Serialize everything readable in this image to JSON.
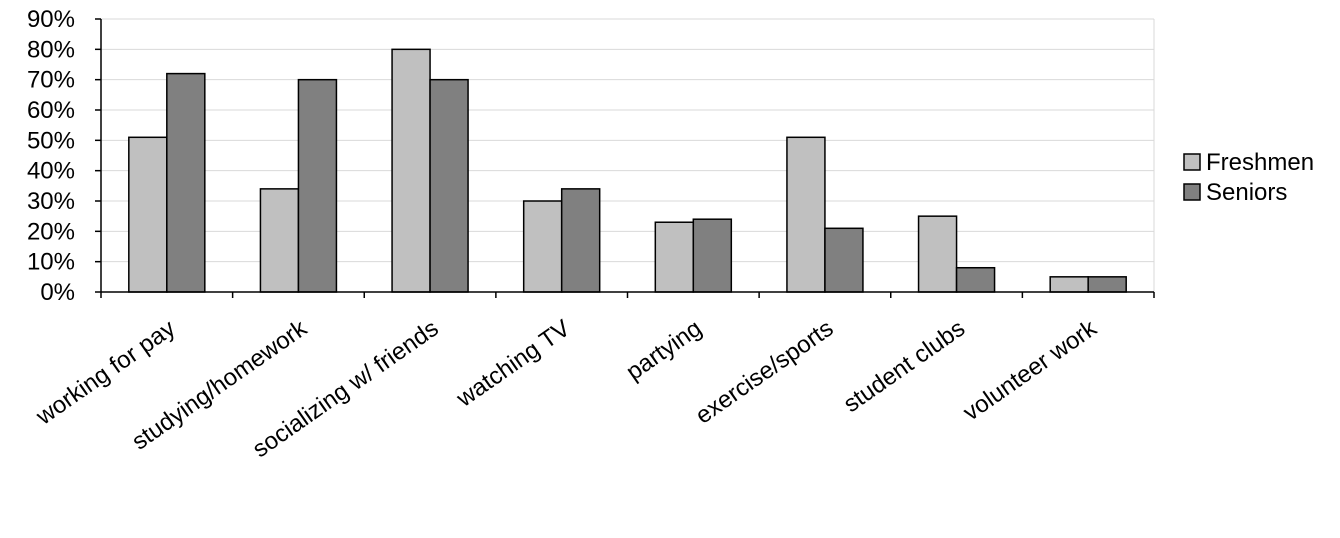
{
  "chart_data": {
    "type": "bar",
    "title": "",
    "xlabel": "",
    "ylabel": "",
    "ylim": [
      0,
      90
    ],
    "y_ticks": [
      "0%",
      "10%",
      "20%",
      "30%",
      "40%",
      "50%",
      "60%",
      "70%",
      "80%",
      "90%"
    ],
    "grid": true,
    "legend_position": "right",
    "categories": [
      "working for pay",
      "studying/homework",
      "socializing w/ friends",
      "watching TV",
      "partying",
      "exercise/sports",
      "student clubs",
      "volunteer work"
    ],
    "series": [
      {
        "name": "Freshmen",
        "color": "#c0c0c0",
        "values": [
          51,
          34,
          80,
          30,
          23,
          51,
          25,
          5
        ]
      },
      {
        "name": "Seniors",
        "color": "#808080",
        "values": [
          72,
          70,
          70,
          34,
          24,
          21,
          8,
          5
        ]
      }
    ]
  }
}
